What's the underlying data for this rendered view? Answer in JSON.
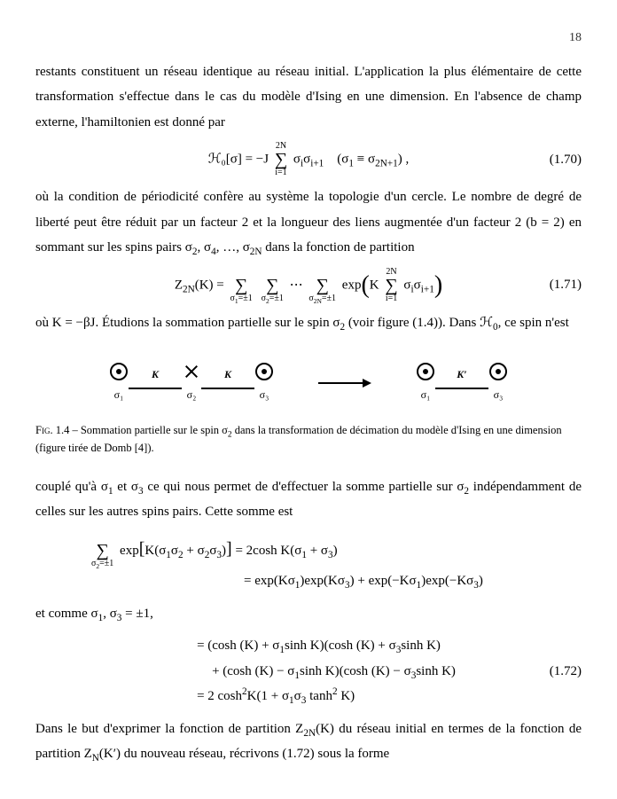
{
  "pageNumber": "18",
  "para1": "restants constituent un réseau identique au réseau initial. L'application la plus élémentaire de cette transformation s'effectue dans le cas du modèle d'Ising en une dimension. En l'absence de champ externe, l'hamiltonien est donné par",
  "eq170": {
    "text": "ℋ₀[σ] = −J <span class='sum'><span class='top'>2N</span><span class='sigma'>∑</span><span class='bot'>i=1</span></span> σ<sub>i</sub>σ<sub>i+1</sub> &nbsp;&nbsp; (σ<sub>1</sub> ≡ σ<sub>2N+1</sub>) ,",
    "num": "(1.70)"
  },
  "para2": "où la condition de périodicité confère au système la topologie d'un cercle. Le nombre de degré de liberté peut être réduit par un facteur 2 et la longueur des liens augmentée d'un facteur 2 (b = 2) en sommant sur les spins pairs σ<sub>2</sub>, σ<sub>4</sub>, …, σ<sub>2N</sub> dans la fonction de partition",
  "eq171": {
    "text": "Z<sub>2N</sub>(K) = <span class='sum'><span class='top'>&nbsp;</span><span class='sigma'>∑</span><span class='bot'>σ<sub>1</sub>=±1</span></span> <span class='sum'><span class='top'>&nbsp;</span><span class='sigma'>∑</span><span class='bot'>σ<sub>2</sub>=±1</span></span> ⋯ <span class='sum'><span class='top'>&nbsp;</span><span class='sigma'>∑</span><span class='bot'>σ<sub>2N</sub>=±1</span></span> exp<span class='bigparen'>(</span>K <span class='sum'><span class='top'>2N</span><span class='sigma'>∑</span><span class='bot'>i=1</span></span> σ<sub>i</sub>σ<sub>i+1</sub><span class='bigparen'>)</span>",
    "num": "(1.71)"
  },
  "para3": "où K = −βJ. Étudions la sommation partielle sur le spin σ<sub>2</sub> (voir figure (1.4)). Dans ℋ<sub>0</sub>, ce spin n'est",
  "figure": {
    "left": {
      "nodes": [
        "σ₁",
        "σ₂",
        "σ₃"
      ],
      "nodeTypes": [
        "dot",
        "cross",
        "dot"
      ],
      "edgeLabels": [
        "K",
        "K"
      ]
    },
    "right": {
      "nodes": [
        "σ₁",
        "σ₃"
      ],
      "nodeTypes": [
        "dot",
        "dot"
      ],
      "edgeLabels": [
        "K′"
      ]
    },
    "colors": {
      "lineColor": "#000000",
      "fillColor": "#000000",
      "background": "#ffffff"
    },
    "lineWidth": 2,
    "nodeRadius": 9,
    "edgeLength": 60
  },
  "figCaptionLabel": "Fig. 1.4 – ",
  "figCaption": "Sommation partielle sur le spin σ<sub>2</sub> dans la transformation de décimation du modèle d'Ising en une dimension (figure tirée de Domb [4]).",
  "para4": "couplé qu'à σ<sub>1</sub> et σ<sub>3</sub> ce qui nous permet de d'effectuer la somme partielle sur σ<sub>2</sub> indépendamment de celles sur les autres spins pairs. Cette somme est",
  "eqBlock1": {
    "line1": "<span class='sum'><span class='top'>&nbsp;</span><span class='sigma'>∑</span><span class='bot'>σ<sub>2</sub>=±1</span></span> exp<span style='font-size:20px'>[</span>K(σ<sub>1</sub>σ<sub>2</sub> + σ<sub>2</sub>σ<sub>3</sub>)<span style='font-size:20px'>]</span> = 2cosh K(σ<sub>1</sub> + σ<sub>3</sub>)",
    "line2": "= exp(Kσ<sub>1</sub>)exp(Kσ<sub>3</sub>) + exp(−Kσ<sub>1</sub>)exp(−Kσ<sub>3</sub>)"
  },
  "para5": "et comme σ<sub>1</sub>, σ<sub>3</sub> = ±1,",
  "eq172": {
    "line1": "= (cosh (K) + σ<sub>1</sub>sinh K)(cosh (K) + σ<sub>3</sub>sinh K)",
    "line2": "+ (cosh (K) − σ<sub>1</sub>sinh K)(cosh (K) − σ<sub>3</sub>sinh K)",
    "line3": "= 2 cosh<sup>2</sup>K(1 + σ<sub>1</sub>σ<sub>3</sub> tanh<sup>2</sup> K)",
    "num": "(1.72)"
  },
  "para6": "Dans le but d'exprimer la fonction de partition Z<sub>2N</sub>(K) du réseau initial en termes de la fonction de partition Z<sub>N</sub>(K′) du nouveau réseau, récrivons (1.72) sous la forme"
}
